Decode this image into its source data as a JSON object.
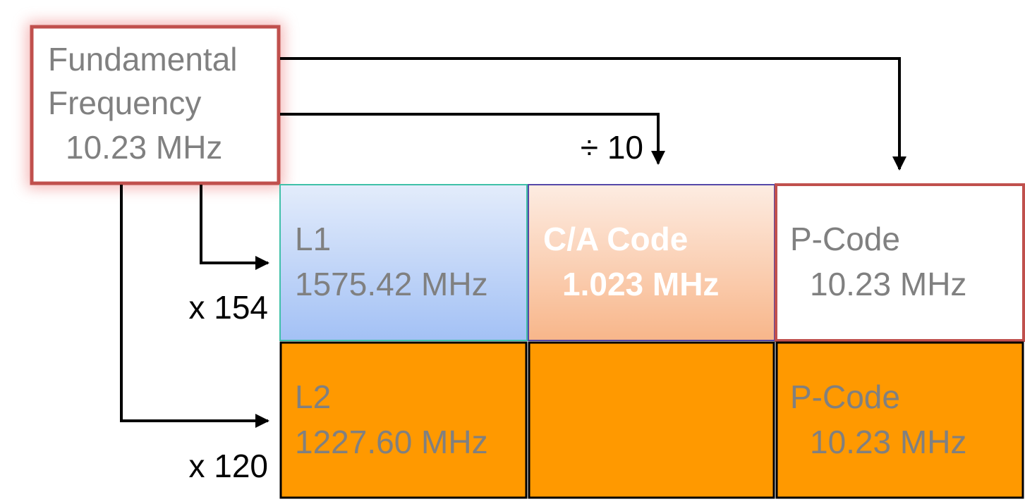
{
  "source": {
    "lines": [
      "Fundamental",
      "Frequency",
      "10.23 MHz"
    ]
  },
  "operations": {
    "divide": "÷ 10",
    "l1_multiplier": "x 154",
    "l2_multiplier": "x 120"
  },
  "cells": {
    "l1": {
      "lines": [
        "L1",
        "1575.42 MHz"
      ]
    },
    "ca_code": {
      "lines": [
        "C/A Code",
        "1.023 MHz"
      ]
    },
    "p_code_l1": {
      "lines": [
        "P-Code",
        "10.23 MHz"
      ]
    },
    "l2": {
      "lines": [
        "L2",
        "1227.60 MHz"
      ]
    },
    "p_code_l2": {
      "lines": [
        "P-Code",
        "10.23 MHz"
      ]
    }
  }
}
